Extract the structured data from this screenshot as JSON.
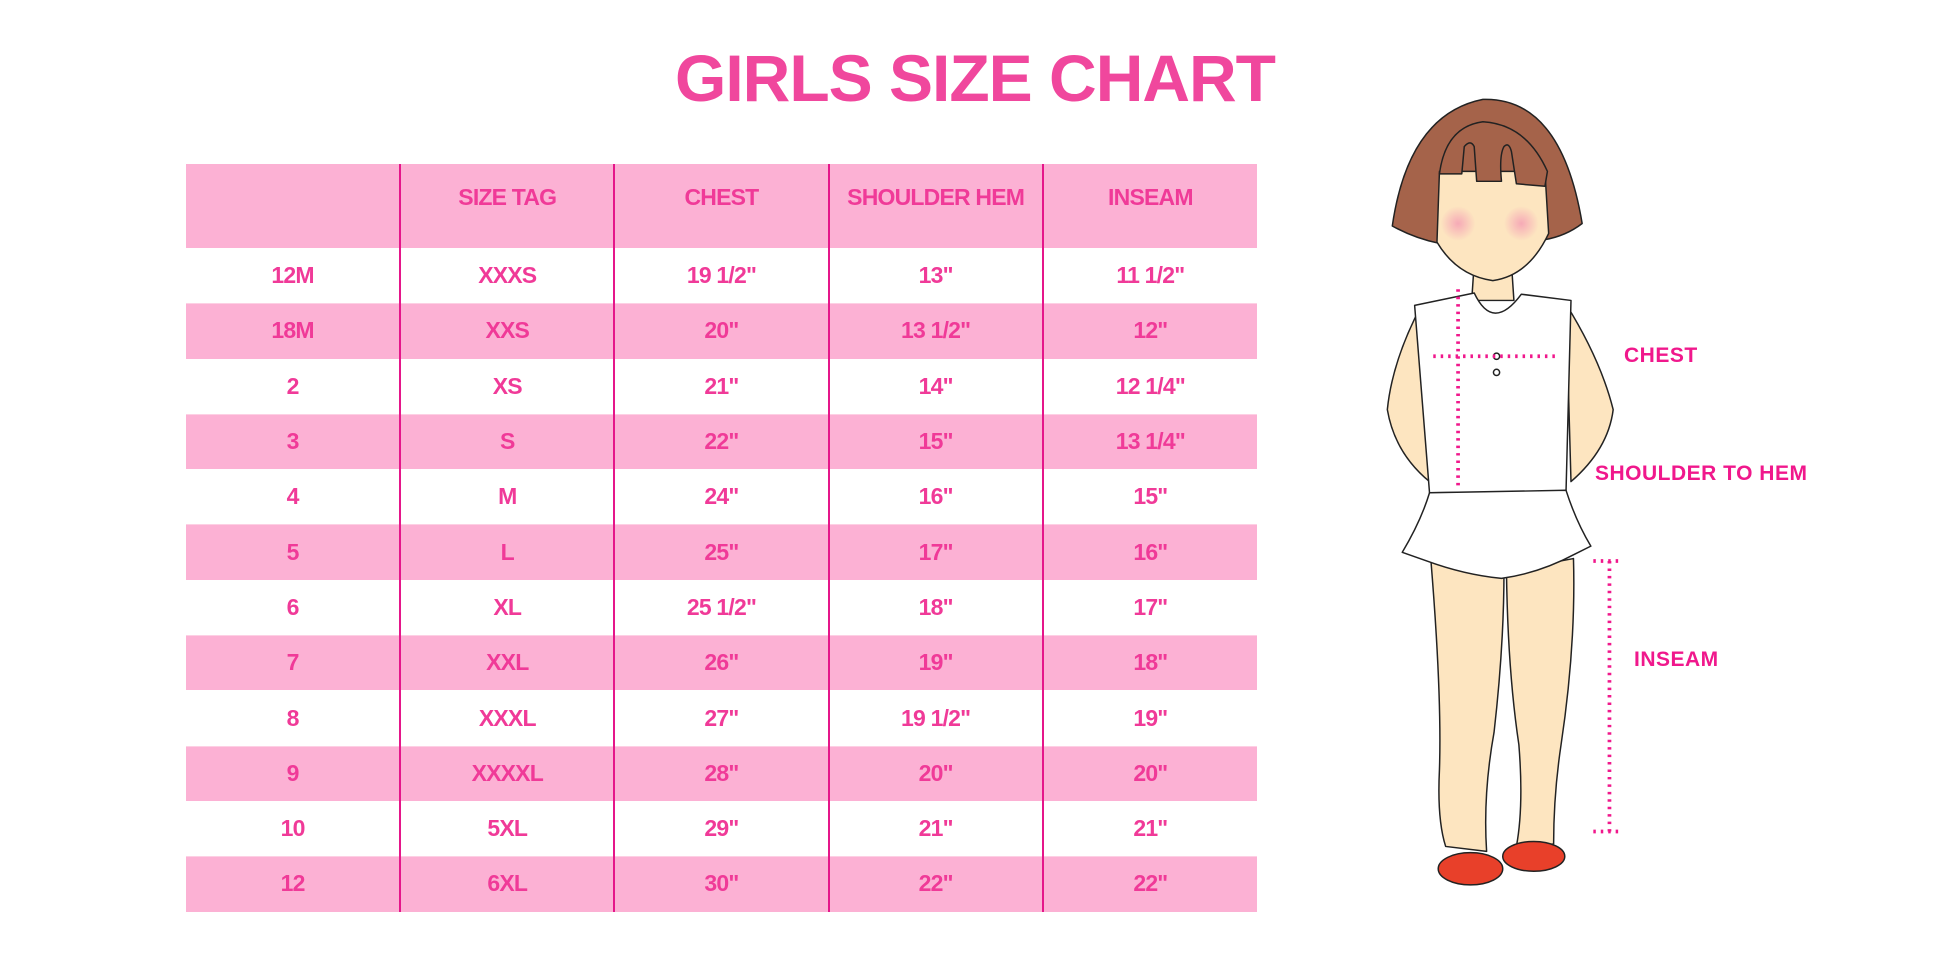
{
  "title": "GIRLS SIZE CHART",
  "table": {
    "headers": [
      "",
      "SIZE TAG",
      "CHEST",
      "SHOULDER HEM",
      "INSEAM"
    ],
    "rows": [
      [
        "12M",
        "XXXS",
        "19 1/2\"",
        "13\"",
        "11 1/2\""
      ],
      [
        "18M",
        "XXS",
        "20\"",
        "13 1/2\"",
        "12\""
      ],
      [
        "2",
        "XS",
        "21\"",
        "14\"",
        "12 1/4\""
      ],
      [
        "3",
        "S",
        "22\"",
        "15\"",
        "13 1/4\""
      ],
      [
        "4",
        "M",
        "24\"",
        "16\"",
        "15\""
      ],
      [
        "5",
        "L",
        "25\"",
        "17\"",
        "16\""
      ],
      [
        "6",
        "XL",
        "25 1/2\"",
        "18\"",
        "17\""
      ],
      [
        "7",
        "XXL",
        "26\"",
        "19\"",
        "18\""
      ],
      [
        "8",
        "XXXL",
        "27\"",
        "19 1/2\"",
        "19\""
      ],
      [
        "9",
        "XXXXL",
        "28\"",
        "20\"",
        "20\""
      ],
      [
        "10",
        "5XL",
        "29\"",
        "21\"",
        "21\""
      ],
      [
        "12",
        "6XL",
        "30\"",
        "22\"",
        "22\""
      ]
    ]
  },
  "figure": {
    "labels": {
      "chest": "CHEST",
      "shoulder_to_hem": "SHOULDER TO HEM",
      "inseam": "INSEAM"
    }
  },
  "colors": {
    "accent": "#f0479d",
    "row_pink": "#fcb1d4",
    "divider": "#e5168a",
    "hair": "#a5634a",
    "skin": "#fde5c0",
    "shoes": "#e8402a"
  }
}
